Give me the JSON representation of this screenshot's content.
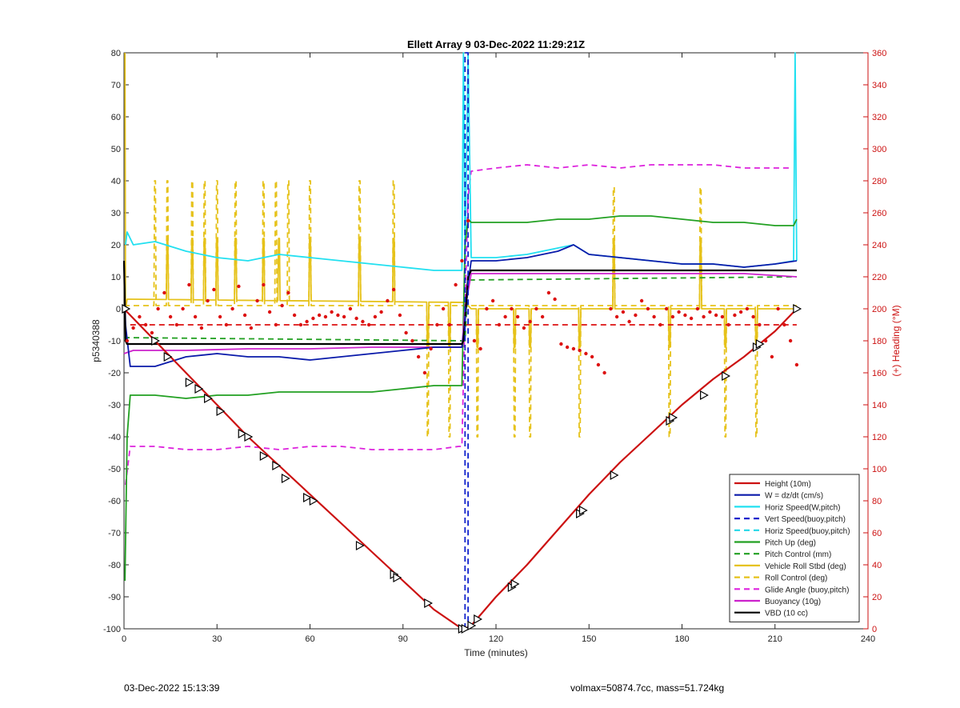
{
  "footer": {
    "timestamp": "03-Dec-2022 15:13:39",
    "info": "volmax=50874.7cc, mass=51.724kg"
  },
  "chart_data": {
    "type": "line",
    "title": "Ellett Array 9 03-Dec-2022 11:29:21Z",
    "xlabel": "Time (minutes)",
    "ylabel": "p5340388",
    "y2label": "(+) Heading (°M)",
    "xlim": [
      0,
      240
    ],
    "ylim": [
      -100,
      80
    ],
    "y2lim": [
      0,
      360
    ],
    "xticks": [
      0,
      30,
      60,
      90,
      120,
      150,
      180,
      210,
      240
    ],
    "yticks": [
      -100,
      -90,
      -80,
      -70,
      -60,
      -50,
      -40,
      -30,
      -20,
      -10,
      0,
      10,
      20,
      30,
      40,
      50,
      60,
      70,
      80
    ],
    "y2ticks": [
      0,
      20,
      40,
      60,
      80,
      100,
      120,
      140,
      160,
      180,
      200,
      220,
      240,
      260,
      280,
      300,
      320,
      340,
      360
    ],
    "grid": false,
    "legend_position": "bottom-right",
    "colors": {
      "height": "#cc1111",
      "w": "#0a1aaa",
      "horiz": "#22e0f0",
      "vert_buoy": "#1122cc",
      "horiz_buoy": "#22d8e8",
      "pitch": "#22a022",
      "roll": "#e6c21a",
      "glide": "#dd22dd",
      "buoyancy": "#cc22cc",
      "vbd": "#000000",
      "heading": "#dd1111",
      "axis_right": "#cc1111"
    },
    "legend": [
      {
        "label": "Height (10m)",
        "color": "#cc1111",
        "dash": false
      },
      {
        "label": "W = dz/dt (cm/s)",
        "color": "#0a1aaa",
        "dash": false
      },
      {
        "label": "Horiz Speed(W,pitch)",
        "color": "#22e0f0",
        "dash": false
      },
      {
        "label": "Vert Speed(buoy,pitch)",
        "color": "#1122cc",
        "dash": true
      },
      {
        "label": "Horiz Speed(buoy,pitch)",
        "color": "#22d8e8",
        "dash": true
      },
      {
        "label": "Pitch Up (deg)",
        "color": "#22a022",
        "dash": false
      },
      {
        "label": "Pitch Control (mm)",
        "color": "#22a022",
        "dash": true
      },
      {
        "label": "Vehicle Roll Stbd (deg)",
        "color": "#e6c21a",
        "dash": false
      },
      {
        "label": "Roll Control (deg)",
        "color": "#e6c21a",
        "dash": true
      },
      {
        "label": "Glide Angle (buoy,pitch)",
        "color": "#dd22dd",
        "dash": true
      },
      {
        "label": "Buoyancy (10g)",
        "color": "#cc22cc",
        "dash": false
      },
      {
        "label": "VBD (10 cc)",
        "color": "#000000",
        "dash": false
      }
    ],
    "series": [
      {
        "name": "Height (10m)",
        "key": "height",
        "x": [
          0,
          10,
          20,
          30,
          40,
          50,
          60,
          70,
          80,
          90,
          100,
          109,
          110,
          112,
          120,
          130,
          140,
          150,
          160,
          170,
          180,
          190,
          200,
          210,
          217
        ],
        "y": [
          0,
          -10,
          -20,
          -30,
          -40,
          -49,
          -58,
          -67,
          -76,
          -85,
          -94,
          -100,
          -100,
          -99,
          -90,
          -80,
          -69,
          -58,
          -48,
          -39,
          -30,
          -22,
          -15,
          -7,
          0
        ]
      },
      {
        "name": "W = dz/dt (cm/s)",
        "key": "w",
        "x": [
          0,
          0.5,
          2,
          10,
          20,
          30,
          40,
          50,
          60,
          70,
          80,
          90,
          100,
          109,
          110,
          111,
          112,
          120,
          130,
          140,
          145,
          150,
          160,
          170,
          180,
          190,
          200,
          210,
          217
        ],
        "y": [
          15,
          -5,
          -18,
          -18,
          -15,
          -14,
          -15,
          -15,
          -16,
          -15,
          -14,
          -13,
          -12,
          -12,
          -4,
          8,
          15,
          15,
          16,
          18,
          20,
          17,
          16,
          15,
          14,
          14,
          13,
          14,
          15
        ]
      },
      {
        "name": "Horiz Speed(W,pitch)",
        "key": "horiz",
        "x": [
          0.5,
          1,
          3,
          10,
          20,
          30,
          40,
          50,
          60,
          70,
          80,
          90,
          100,
          108,
          109,
          109.5,
          110,
          111,
          112,
          120,
          130,
          140,
          145,
          150,
          160,
          170,
          180,
          190,
          200,
          210,
          216,
          216.5,
          217
        ],
        "y": [
          20,
          24,
          20,
          21,
          18,
          16,
          15,
          17,
          16,
          15,
          14,
          13,
          12,
          12,
          12,
          80,
          14,
          80,
          16,
          16,
          17,
          19,
          20,
          17,
          16,
          15,
          14,
          14,
          13,
          14,
          15,
          80,
          15
        ]
      },
      {
        "name": "Vert Speed(buoy,pitch)",
        "key": "vert_buoy",
        "x": [
          110,
          110,
          111,
          111
        ],
        "y": [
          -100,
          80,
          80,
          -100
        ],
        "dash": true
      },
      {
        "name": "Pitch Up (deg)",
        "key": "pitch",
        "x": [
          0.3,
          1,
          2,
          10,
          20,
          30,
          40,
          50,
          60,
          70,
          80,
          90,
          100,
          108,
          109,
          110,
          111,
          112,
          120,
          130,
          140,
          150,
          160,
          170,
          180,
          190,
          200,
          210,
          216,
          217
        ],
        "y": [
          -85,
          -40,
          -27,
          -27,
          -28,
          -27,
          -27,
          -26,
          -26,
          -26,
          -26,
          -25,
          -24,
          -24,
          -24,
          20,
          28,
          27,
          27,
          27,
          28,
          28,
          29,
          29,
          28,
          27,
          27,
          26,
          26,
          28
        ]
      },
      {
        "name": "Pitch Control (mm)",
        "key": "pitch_ctrl",
        "x": [
          0,
          110,
          110,
          111,
          217
        ],
        "y": [
          -9,
          -10,
          -10,
          9,
          10
        ],
        "dash": true
      },
      {
        "name": "Buoyancy (10g)",
        "key": "buoyancy",
        "x": [
          0,
          3,
          20,
          40,
          60,
          80,
          100,
          109,
          110,
          112,
          150,
          200,
          217
        ],
        "y": [
          -14,
          -13,
          -13,
          -12.5,
          -12.5,
          -12,
          -12,
          -12,
          0,
          11,
          11,
          11,
          10
        ]
      },
      {
        "name": "VBD (10 cc)",
        "key": "vbd",
        "x": [
          0,
          0.5,
          1,
          109,
          109.5,
          111,
          112,
          217
        ],
        "y": [
          15,
          -10,
          -11,
          -11,
          -10,
          10,
          12,
          12
        ]
      },
      {
        "name": "Glide Angle (buoy,pitch)",
        "key": "glide",
        "x": [
          0.5,
          2,
          10,
          20,
          30,
          40,
          50,
          60,
          70,
          80,
          90,
          100,
          108,
          109,
          110,
          111,
          112,
          120,
          130,
          140,
          150,
          160,
          170,
          180,
          190,
          200,
          210,
          215
        ],
        "y": [
          -55,
          -43,
          -43,
          -44,
          -44,
          -43,
          -44,
          -43,
          -43,
          -44,
          -44,
          -44,
          -43,
          -43,
          0,
          35,
          43,
          44,
          45,
          44,
          45,
          44,
          45,
          45,
          45,
          44,
          44,
          44
        ],
        "dash": true
      },
      {
        "name": "Vehicle Roll Stbd (deg)",
        "key": "roll",
        "x": [
          0.3,
          0.5,
          1,
          2,
          110,
          112,
          217
        ],
        "y": [
          80,
          0,
          3,
          3,
          2,
          0,
          0
        ],
        "spikes_up": [
          [
            14,
            22
          ],
          [
            22,
            22
          ],
          [
            26,
            22
          ],
          [
            30,
            22
          ],
          [
            36,
            22
          ],
          [
            45,
            22
          ],
          [
            50,
            22
          ],
          [
            60,
            22
          ],
          [
            76,
            22
          ],
          [
            87,
            22
          ],
          [
            158,
            22
          ],
          [
            186,
            22
          ]
        ],
        "spikes_down": [
          [
            98,
            -12
          ],
          [
            105,
            -12
          ],
          [
            114,
            -12
          ],
          [
            126,
            -12
          ],
          [
            131,
            -12
          ],
          [
            147,
            -12
          ],
          [
            176,
            -12
          ],
          [
            194,
            -12
          ],
          [
            204,
            -12
          ]
        ]
      },
      {
        "name": "Roll Control (deg)",
        "key": "roll_ctrl",
        "x": [
          0,
          217
        ],
        "y": [
          1,
          1
        ],
        "dash": true,
        "spikes_up": [
          [
            10,
            40
          ],
          [
            14,
            40
          ],
          [
            22,
            40
          ],
          [
            26,
            40
          ],
          [
            30,
            40
          ],
          [
            36,
            40
          ],
          [
            45,
            40
          ],
          [
            49,
            40
          ],
          [
            53,
            40
          ],
          [
            60,
            40
          ],
          [
            76,
            40
          ],
          [
            87,
            40
          ],
          [
            158,
            38
          ],
          [
            186,
            38
          ]
        ],
        "spikes_down": [
          [
            98,
            -40
          ],
          [
            105,
            -40
          ],
          [
            114,
            -40
          ],
          [
            126,
            -40
          ],
          [
            131,
            -40
          ],
          [
            147,
            -40
          ],
          [
            176,
            -40
          ],
          [
            194,
            -40
          ],
          [
            204,
            -40
          ]
        ]
      },
      {
        "name": "Heading",
        "key": "heading",
        "axis": "right",
        "x": [
          1,
          3,
          5,
          7,
          9,
          11,
          13,
          15,
          17,
          19,
          21,
          23,
          25,
          27,
          29,
          31,
          33,
          35,
          37,
          39,
          41,
          43,
          45,
          47,
          49,
          51,
          53,
          55,
          57,
          59,
          61,
          63,
          65,
          67,
          69,
          71,
          73,
          75,
          77,
          79,
          81,
          83,
          85,
          87,
          89,
          91,
          93,
          95,
          97,
          99,
          101,
          103,
          105,
          107,
          109,
          111,
          113,
          115,
          117,
          119,
          121,
          123,
          125,
          127,
          129,
          131,
          133,
          135,
          137,
          139,
          141,
          143,
          145,
          147,
          149,
          151,
          153,
          155,
          157,
          159,
          161,
          163,
          165,
          167,
          169,
          171,
          173,
          175,
          177,
          179,
          181,
          183,
          185,
          187,
          189,
          191,
          193,
          195,
          197,
          199,
          201,
          203,
          205,
          207,
          209,
          211,
          213,
          215,
          217
        ],
        "y": [
          180,
          188,
          195,
          190,
          185,
          200,
          210,
          195,
          190,
          200,
          215,
          195,
          188,
          205,
          212,
          195,
          190,
          200,
          214,
          196,
          188,
          205,
          215,
          198,
          190,
          202,
          210,
          196,
          190,
          192,
          194,
          196,
          195,
          198,
          196,
          195,
          200,
          194,
          192,
          190,
          195,
          198,
          205,
          212,
          196,
          185,
          180,
          170,
          160,
          175,
          190,
          200,
          190,
          215,
          230,
          255,
          180,
          175,
          200,
          205,
          190,
          195,
          200,
          195,
          188,
          192,
          200,
          195,
          210,
          206,
          178,
          176,
          175,
          174,
          172,
          170,
          165,
          160,
          200,
          195,
          198,
          192,
          196,
          205,
          200,
          195,
          190,
          200,
          195,
          198,
          196,
          194,
          200,
          195,
          198,
          196,
          195,
          190,
          196,
          198,
          200,
          195,
          190,
          180,
          170,
          200,
          190,
          180,
          165
        ]
      },
      {
        "name": "Mean Heading",
        "key": "heading_mean",
        "axis": "right",
        "x": [
          2,
          217
        ],
        "y": [
          190,
          190
        ],
        "dash": true
      }
    ],
    "markers": {
      "x": [
        0.5,
        10,
        14,
        21,
        24,
        27,
        31,
        38,
        40,
        45,
        49,
        52,
        59,
        61,
        76,
        87,
        88,
        98,
        109,
        110,
        112,
        114,
        125,
        126,
        147,
        148,
        158,
        176,
        177,
        187,
        194,
        204,
        205,
        217
      ],
      "y": [
        0,
        -10,
        -15,
        -23,
        -25,
        -28,
        -32,
        -39,
        -40,
        -46,
        -49,
        -53,
        -59,
        -60,
        -74,
        -83,
        -84,
        -92,
        -100,
        -100,
        -99,
        -97,
        -87,
        -86,
        -64,
        -63,
        -52,
        -35,
        -34,
        -27,
        -21,
        -12,
        -11,
        0
      ]
    }
  }
}
